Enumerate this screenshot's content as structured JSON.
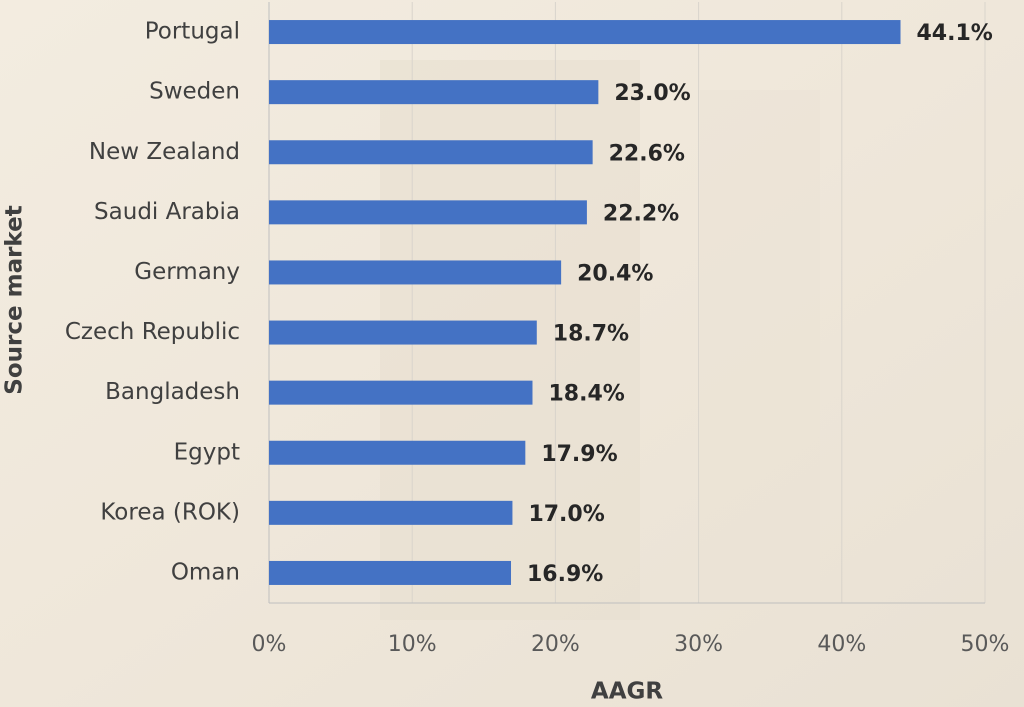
{
  "chart_data": {
    "type": "bar",
    "x_label": "AAGR",
    "y_label": "Source market",
    "categories": [
      "Portugal",
      "Sweden",
      "New Zealand",
      "Saudi Arabia",
      "Germany",
      "Czech Republic",
      "Bangladesh",
      "Egypt",
      "Korea (ROK)",
      "Oman"
    ],
    "values": [
      44.1,
      23.0,
      22.6,
      22.2,
      20.4,
      18.7,
      18.4,
      17.9,
      17.0,
      16.9
    ],
    "value_labels": [
      "44.1%",
      "23.0%",
      "22.6%",
      "22.2%",
      "20.4%",
      "18.7%",
      "18.4%",
      "17.9%",
      "17.0%",
      "16.9%"
    ],
    "color": "#4472c4",
    "xlim": [
      0,
      50
    ],
    "xticks": [
      {
        "value": 0,
        "label": "0%"
      },
      {
        "value": 10,
        "label": "10%"
      },
      {
        "value": 20,
        "label": "20%"
      },
      {
        "value": 30,
        "label": "30%"
      },
      {
        "value": 40,
        "label": "40%"
      },
      {
        "value": 50,
        "label": "50%"
      }
    ],
    "grid": true
  }
}
